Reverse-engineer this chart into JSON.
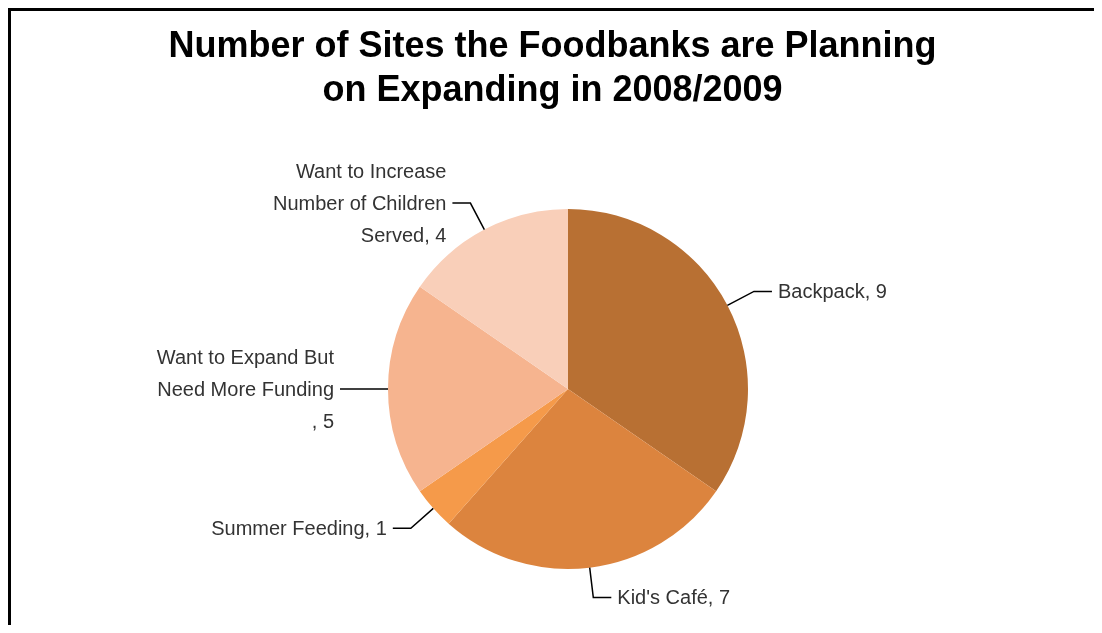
{
  "chart_data": {
    "type": "pie",
    "title": "Number of Sites the Foodbanks are Planning on Expanding in 2008/2009",
    "categories": [
      "Backpack",
      "Kid's Café",
      "Summer Feeding",
      "Want to Expand But Need More Funding",
      "Want to Increase Number of Children Served"
    ],
    "values": [
      9,
      7,
      1,
      5,
      4
    ],
    "colors": [
      "#b87033",
      "#dc843e",
      "#f59a4a",
      "#f6b48f",
      "#f9cfb9"
    ],
    "value_labels": [
      ", 9",
      ", 7",
      ", 1",
      ", 5",
      ", 4"
    ],
    "legend": false
  }
}
